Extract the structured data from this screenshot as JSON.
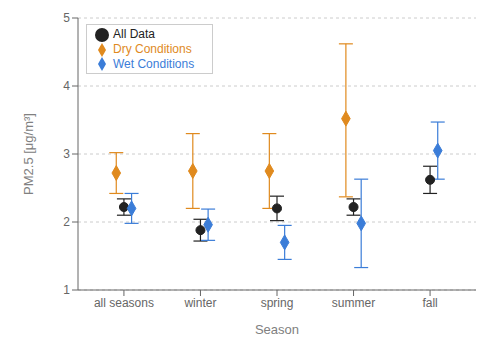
{
  "chart_data": {
    "type": "scatter",
    "categories": [
      "all seasons",
      "winter",
      "spring",
      "summer",
      "fall"
    ],
    "xlabel": "Season",
    "ylabel": "PM2.5 [μg/m³]",
    "ylim": [
      1,
      5
    ],
    "yticks": [
      1,
      2,
      3,
      4,
      5
    ],
    "grid": true,
    "legend": "upper left",
    "series": [
      {
        "name": "All Data",
        "color": "#222222",
        "marker": "circle",
        "values": [
          2.22,
          1.88,
          2.2,
          2.22,
          2.62
        ],
        "err_low": [
          0.12,
          0.16,
          0.18,
          0.12,
          0.2
        ],
        "err_high": [
          0.12,
          0.16,
          0.18,
          0.12,
          0.2
        ]
      },
      {
        "name": "Dry Conditions",
        "color": "#e08a1e",
        "marker": "diamond",
        "values": [
          2.72,
          2.75,
          2.75,
          3.52,
          null
        ],
        "err_low": [
          0.3,
          0.55,
          0.55,
          1.15,
          null
        ],
        "err_high": [
          0.3,
          0.55,
          0.55,
          1.1,
          null
        ]
      },
      {
        "name": "Wet Conditions",
        "color": "#3b7dd8",
        "marker": "diamond",
        "values": [
          2.2,
          1.96,
          1.7,
          1.98,
          3.05
        ],
        "err_low": [
          0.22,
          0.23,
          0.25,
          0.65,
          0.42
        ],
        "err_high": [
          0.22,
          0.23,
          0.25,
          0.65,
          0.42
        ]
      }
    ]
  }
}
